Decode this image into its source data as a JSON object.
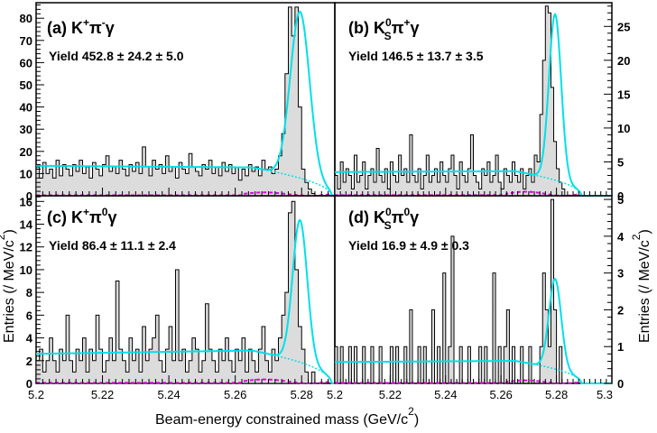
{
  "figure": {
    "xlabel": "Beam-energy constrained mass (GeV/c",
    "xlabel_sup": "2",
    "xlabel_close": ")",
    "ylabel_left": "Entries (/ MeV/c",
    "ylabel_right": "Entries (/ MeV/c",
    "ylabel_sup": "2",
    "ylabel_close": ")",
    "x_ticks_left": [
      "5.2",
      "5.22",
      "5.24",
      "5.26",
      "5.28"
    ],
    "x_ticks_right": [
      "5.2",
      "5.22",
      "5.24",
      "5.26",
      "5.28",
      "5.3"
    ]
  },
  "colors": {
    "histogram_fill": "#dcdcdc",
    "histogram_line": "#000000",
    "fit_total": "#00e0e8",
    "fit_background": "#00e0e8",
    "peaking_background": "#e000e0"
  },
  "chart_data": [
    {
      "type": "histogram",
      "panel": "(a)",
      "label_main": "(a) K",
      "label_sup1": "+",
      "label_mid": "π",
      "label_sup2": "-",
      "label_end": "γ",
      "yield_text": "Yield 452.8 ± 24.2 ± 5.0",
      "xlim": [
        5.2,
        5.29
      ],
      "ylim": [
        0,
        87
      ],
      "y_ticks": [
        "0",
        "10",
        "20",
        "30",
        "40",
        "50",
        "60",
        "70",
        "80"
      ],
      "bin_start": 5.2,
      "bin_width": 0.001,
      "counts": [
        13,
        8,
        15,
        10,
        12,
        8,
        16,
        9,
        14,
        12,
        9,
        14,
        11,
        16,
        10,
        13,
        8,
        15,
        12,
        9,
        14,
        18,
        11,
        13,
        10,
        16,
        12,
        9,
        14,
        11,
        15,
        10,
        22,
        13,
        9,
        16,
        12,
        14,
        10,
        18,
        11,
        13,
        8,
        15,
        12,
        10,
        19,
        13,
        11,
        9,
        14,
        12,
        16,
        10,
        13,
        9,
        15,
        11,
        14,
        10,
        13,
        7,
        12,
        9,
        14,
        11,
        13,
        9,
        16,
        12,
        13,
        10,
        12,
        18,
        28,
        55,
        85,
        72,
        85,
        40,
        12,
        6,
        3,
        1,
        0,
        0,
        0,
        0,
        0,
        0
      ],
      "fit_total": {
        "flat": 13.5,
        "slope": -1.0,
        "peak": 75,
        "mean": 5.2795,
        "sigma": 0.0029
      },
      "fit_background": {
        "flat": 13.5,
        "slope": -1.0,
        "endpoint": 5.289
      },
      "peaking_level": 1.5
    },
    {
      "type": "histogram",
      "panel": "(b)",
      "label_main": "(b) K",
      "label_sub": "S",
      "label_sup1": "0",
      "label_mid": "π",
      "label_sup2": "+",
      "label_end": "γ",
      "yield_text": "Yield 146.5 ± 13.7 ± 3.5",
      "xlim": [
        5.2,
        5.3
      ],
      "ylim": [
        0,
        28.5
      ],
      "y_ticks": [
        "0",
        "5",
        "10",
        "15",
        "20",
        "25"
      ],
      "bin_start": 5.2,
      "bin_width": 0.001,
      "counts": [
        3,
        1,
        5,
        2,
        4,
        3,
        1,
        6,
        2,
        3,
        5,
        1,
        3,
        4,
        2,
        7,
        3,
        2,
        4,
        1,
        5,
        3,
        2,
        6,
        3,
        4,
        2,
        9,
        3,
        2,
        4,
        1,
        3,
        6,
        2,
        3,
        4,
        2,
        5,
        3,
        2,
        4,
        6,
        3,
        1,
        5,
        3,
        2,
        4,
        9,
        3,
        2,
        1,
        4,
        3,
        5,
        2,
        3,
        6,
        2,
        1,
        4,
        3,
        2,
        5,
        3,
        2,
        4,
        1,
        3,
        4,
        2,
        6,
        5,
        12,
        20,
        28,
        27,
        16,
        8,
        4,
        2,
        1,
        0,
        0,
        0,
        0,
        0,
        0,
        0
      ],
      "fit_total": {
        "flat": 3.5,
        "slope": 0.2,
        "peak": 24.5,
        "mean": 5.2795,
        "sigma": 0.0022
      },
      "fit_background": {
        "flat": 3.5,
        "slope": 0.2,
        "endpoint": 5.289
      },
      "peaking_level": 0.6
    },
    {
      "type": "histogram",
      "panel": "(c)",
      "label_main": "(c) K",
      "label_sup1": "+",
      "label_mid": "π",
      "label_sup2": "0",
      "label_end": "γ",
      "yield_text": "Yield 86.4 ± 11.1 ± 2.4",
      "xlim": [
        5.2,
        5.29
      ],
      "ylim": [
        0,
        16.5
      ],
      "y_ticks": [
        "0",
        "2",
        "4",
        "6",
        "8",
        "10",
        "12",
        "14",
        "16"
      ],
      "bin_start": 5.2,
      "bin_width": 0.001,
      "counts": [
        2,
        3,
        1,
        2,
        4,
        2,
        1,
        3,
        2,
        6,
        2,
        1,
        3,
        2,
        4,
        1,
        3,
        2,
        6,
        3,
        1,
        2,
        4,
        2,
        9,
        3,
        2,
        1,
        4,
        2,
        3,
        1,
        5,
        2,
        3,
        4,
        6,
        2,
        1,
        3,
        5,
        2,
        10,
        2,
        3,
        1,
        2,
        4,
        3,
        1,
        2,
        7,
        3,
        2,
        1,
        3,
        2,
        4,
        2,
        1,
        3,
        2,
        4,
        1,
        3,
        2,
        1,
        3,
        5,
        2,
        1,
        3,
        2,
        4,
        6,
        8,
        15,
        16,
        10,
        5,
        3,
        1,
        0,
        1,
        0,
        0,
        0,
        0,
        0,
        0
      ],
      "fit_total": {
        "flat": 2.6,
        "slope": 0.4,
        "peak": 12.5,
        "mean": 5.2795,
        "sigma": 0.0022
      },
      "fit_background": {
        "flat": 2.6,
        "slope": 0.4,
        "endpoint": 5.289
      },
      "peaking_level": 0.35
    },
    {
      "type": "histogram",
      "panel": "(d)",
      "label_main": "(d) K",
      "label_sub": "S",
      "label_sup1": "0",
      "label_mid": "π",
      "label_sup2": "0",
      "label_end": "γ",
      "yield_text": "Yield 16.9 ± 4.9 ± 0.3",
      "xlim": [
        5.2,
        5.3
      ],
      "ylim": [
        0,
        5.1
      ],
      "y_ticks": [
        "0",
        "1",
        "2",
        "3",
        "4",
        "5"
      ],
      "bin_start": 5.2,
      "bin_width": 0.001,
      "counts": [
        1,
        0,
        1,
        0,
        0,
        1,
        0,
        1,
        0,
        0,
        1,
        0,
        0,
        1,
        0,
        0,
        1,
        0,
        0,
        0,
        1,
        0,
        1,
        0,
        0,
        1,
        0,
        2,
        0,
        0,
        1,
        0,
        1,
        0,
        0,
        2,
        0,
        1,
        0,
        3,
        0,
        1,
        4,
        0,
        0,
        1,
        0,
        0,
        1,
        0,
        0,
        0,
        1,
        0,
        1,
        0,
        0,
        3,
        0,
        1,
        0,
        1,
        2,
        0,
        1,
        0,
        0,
        1,
        0,
        0,
        1,
        0,
        0,
        0,
        1,
        3,
        2,
        1,
        5,
        2,
        0,
        1,
        0,
        0,
        0,
        0,
        0,
        0,
        0,
        0
      ],
      "fit_total": {
        "flat": 0.58,
        "slope": 0.05,
        "peak": 2.45,
        "mean": 5.2795,
        "sigma": 0.0022
      },
      "fit_background": {
        "flat": 0.58,
        "slope": 0.05,
        "endpoint": 5.289
      },
      "peaking_level": 0.08
    }
  ]
}
